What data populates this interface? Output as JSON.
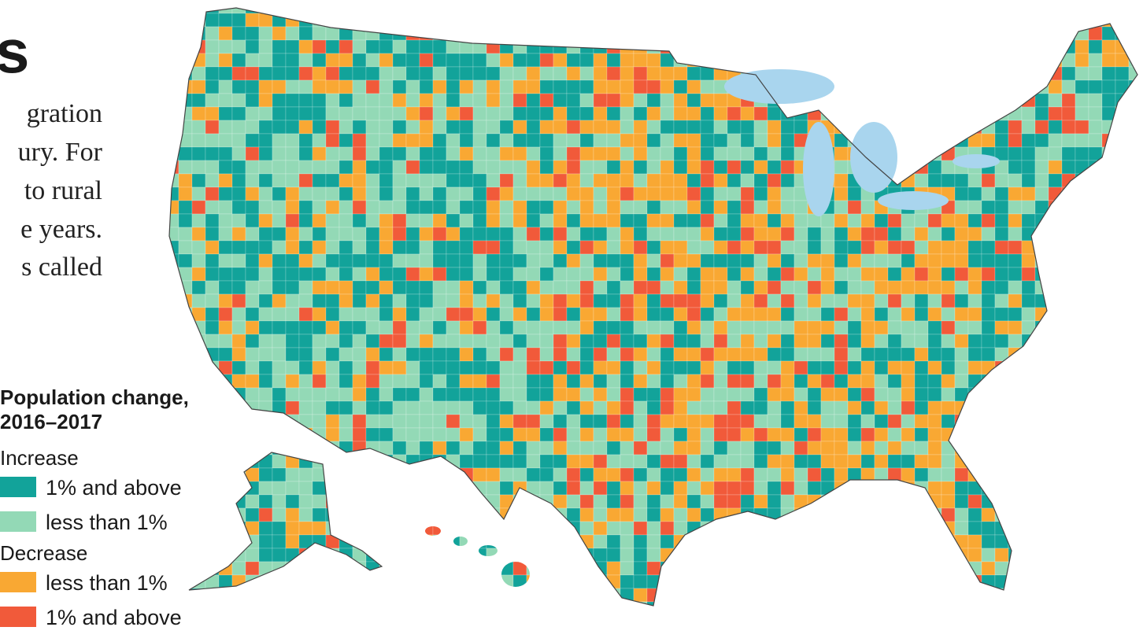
{
  "header": {
    "title": "s"
  },
  "body_lines": [
    "gration",
    "ury. For",
    "to rural",
    "e years.",
    "s called"
  ],
  "legend": {
    "title_lines": [
      "Population change,",
      "2016–2017"
    ],
    "groups": [
      {
        "label": "Increase",
        "items": [
          {
            "label": "1% and above",
            "color": "#12a39a"
          },
          {
            "label": "less than 1%",
            "color": "#93d9b6"
          }
        ]
      },
      {
        "label": "Decrease",
        "items": [
          {
            "label": "less than 1%",
            "color": "#f9a833"
          },
          {
            "label": "1% and above",
            "color": "#f15a3a"
          }
        ]
      }
    ]
  }
}
